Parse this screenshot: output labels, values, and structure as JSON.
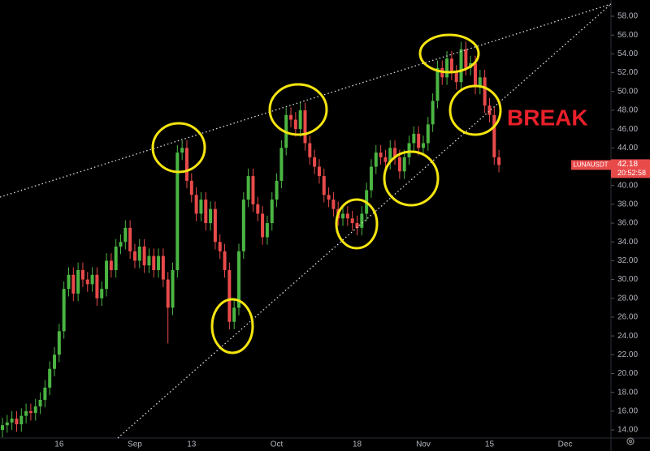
{
  "chart_data": {
    "type": "candlestick",
    "symbol": "LUNAUSDT",
    "countdown": "20:52:58",
    "annotation": "BREAK",
    "up_color": "#4bb543",
    "down_color": "#e84a4a",
    "ylim": [
      13.14,
      59.73
    ],
    "yticks": [
      {
        "value": 14,
        "label": "14.00"
      },
      {
        "value": 16,
        "label": "16.00"
      },
      {
        "value": 18,
        "label": "18.00"
      },
      {
        "value": 20,
        "label": "20.00"
      },
      {
        "value": 22,
        "label": "22.00"
      },
      {
        "value": 24,
        "label": "24.00"
      },
      {
        "value": 26,
        "label": "26.00"
      },
      {
        "value": 28,
        "label": "28.00"
      },
      {
        "value": 30,
        "label": "30.00"
      },
      {
        "value": 32,
        "label": "32.00"
      },
      {
        "value": 34,
        "label": "34.00"
      },
      {
        "value": 36,
        "label": "36.00"
      },
      {
        "value": 38,
        "label": "38.00"
      },
      {
        "value": 40,
        "label": "40.00"
      },
      {
        "value": 42,
        "label": "42.00"
      },
      {
        "value": 44,
        "label": "44.00"
      },
      {
        "value": 46,
        "label": "46.00"
      },
      {
        "value": 48,
        "label": "48.00"
      },
      {
        "value": 50,
        "label": "50.00"
      },
      {
        "value": 52,
        "label": "52.00"
      },
      {
        "value": 54,
        "label": "54.00"
      },
      {
        "value": 56,
        "label": "56.00"
      },
      {
        "value": 58,
        "label": "58.00"
      }
    ],
    "grid": false,
    "categories": [
      null,
      null,
      null,
      null,
      null,
      null,
      null,
      null,
      null,
      null,
      null,
      null,
      "16",
      null,
      null,
      null,
      null,
      null,
      null,
      null,
      null,
      null,
      null,
      null,
      null,
      null,
      null,
      null,
      "Sep",
      null,
      null,
      null,
      null,
      null,
      null,
      null,
      null,
      null,
      null,
      null,
      "13",
      null,
      null,
      null,
      null,
      null,
      null,
      null,
      null,
      null,
      null,
      null,
      null,
      null,
      null,
      null,
      null,
      null,
      "Oct",
      null,
      null,
      null,
      null,
      null,
      null,
      null,
      null,
      null,
      null,
      null,
      null,
      null,
      null,
      null,
      null,
      "18",
      null,
      null,
      null,
      null,
      null,
      null,
      null,
      null,
      null,
      null,
      null,
      null,
      null,
      "Nov",
      null,
      null,
      null,
      null,
      null,
      null,
      null,
      null,
      null,
      null,
      null,
      null,
      null,
      "15",
      null,
      null,
      null,
      null,
      null,
      null,
      null,
      null,
      null,
      null,
      null,
      null,
      null,
      null,
      null,
      "Dec",
      null,
      null,
      null,
      null,
      null,
      null,
      null,
      null
    ],
    "open": [
      14,
      14.5,
      14.8,
      15.2,
      14.6,
      15.5,
      16,
      15.8,
      16.5,
      17.2,
      18.5,
      20.5,
      22,
      24.5,
      29,
      30.5,
      28.5,
      31,
      30,
      29.5,
      30.5,
      28,
      29,
      32,
      31,
      33.5,
      34,
      35.5,
      33,
      32,
      33.5,
      31.5,
      32.5,
      31,
      32.5,
      30,
      27,
      31,
      43.5,
      44,
      40.5,
      39,
      37,
      38.5,
      36,
      37.5,
      34,
      33,
      31,
      25.5,
      27,
      33,
      38.5,
      41,
      38,
      37,
      34.5,
      36,
      38.5,
      40.5,
      44,
      47.5,
      47,
      46,
      48,
      44.5,
      43,
      42,
      41,
      39,
      38.5,
      37.5,
      36.5,
      37,
      36.5,
      36,
      35.5,
      37,
      39.5,
      42,
      43.5,
      43,
      42.5,
      44,
      43,
      41.5,
      43,
      44.5,
      45.5,
      44,
      44.5,
      46.5,
      49,
      52.5,
      51.5,
      53.5,
      52,
      51,
      54.5,
      52.5,
      53,
      50.5,
      51.5,
      48.5,
      47.5,
      43,
      null,
      null,
      null,
      null,
      null,
      null,
      null,
      null,
      null,
      null,
      null,
      null,
      null,
      null,
      null,
      null,
      null,
      null,
      null,
      null,
      null,
      null
    ],
    "high": [
      15.3,
      15.6,
      16,
      16,
      16.3,
      16.8,
      16.8,
      17.3,
      18,
      19.3,
      21.3,
      22.8,
      25.3,
      29.8,
      31.3,
      31.3,
      31.8,
      31.8,
      30.8,
      31.3,
      31.3,
      29.8,
      32.8,
      32.8,
      34.3,
      34.8,
      36.3,
      36.3,
      33.8,
      34.3,
      34.3,
      33.3,
      33.3,
      33.3,
      33.3,
      30.8,
      31.8,
      44.3,
      44.8,
      44.8,
      41.3,
      39.8,
      39.3,
      39.3,
      38.3,
      38.3,
      34.8,
      33.8,
      31.8,
      27.8,
      33.8,
      39.3,
      41.8,
      41.8,
      38.8,
      37.8,
      36.8,
      39.3,
      41.3,
      44.8,
      48.3,
      48.3,
      47.8,
      48.8,
      48.8,
      45.3,
      43.8,
      42.8,
      41.8,
      39.8,
      39.3,
      38.3,
      37.8,
      37.8,
      37.3,
      36.8,
      37.8,
      40.3,
      42.8,
      44.3,
      44.3,
      43.8,
      44.8,
      44.8,
      43.8,
      43.8,
      45.3,
      46.3,
      46.3,
      45.3,
      47.3,
      49.8,
      53.3,
      53.3,
      54.3,
      54.3,
      52.8,
      55.3,
      55.3,
      53.8,
      53.8,
      52.3,
      52.3,
      49.3,
      48.3,
      43.8,
      null,
      null,
      null,
      null,
      null,
      null,
      null,
      null,
      null,
      null,
      null,
      null,
      null,
      null,
      null,
      null,
      null,
      null,
      null,
      null,
      null,
      null
    ],
    "low": [
      13.2,
      13.7,
      14,
      13.8,
      13.8,
      14.7,
      15,
      15,
      15.7,
      16.4,
      17.7,
      19.7,
      21.2,
      23.7,
      28.2,
      27.7,
      27.7,
      29.2,
      28.7,
      28.7,
      27.2,
      27.2,
      28.2,
      30.2,
      30.2,
      32.7,
      33.2,
      32.2,
      31.2,
      31.2,
      30.7,
      30.7,
      30.2,
      30.2,
      29.2,
      23.2,
      26.2,
      30.2,
      42.7,
      39.7,
      38.2,
      36.2,
      36.2,
      35.2,
      35.2,
      33.2,
      32.2,
      30.2,
      24.7,
      24.7,
      26.2,
      32.2,
      37.7,
      37.2,
      36.2,
      33.7,
      33.7,
      35.2,
      37.7,
      39.7,
      43.2,
      46.2,
      45.2,
      45.2,
      43.7,
      42.2,
      41.2,
      40.2,
      38.2,
      37.7,
      36.7,
      35.7,
      35.7,
      35.7,
      35.2,
      34.7,
      34.7,
      36.2,
      38.7,
      41.2,
      42.2,
      41.7,
      41.7,
      42.2,
      40.7,
      40.7,
      42.2,
      43.7,
      43.2,
      43.2,
      43.7,
      45.7,
      48.2,
      50.7,
      50.7,
      51.2,
      50.2,
      50.2,
      51.7,
      51.7,
      49.7,
      49.7,
      47.7,
      46.7,
      42.2,
      41.4,
      null,
      null,
      null,
      null,
      null,
      null,
      null,
      null,
      null,
      null,
      null,
      null,
      null,
      null,
      null,
      null,
      null,
      null,
      null,
      null,
      null,
      null
    ],
    "close": [
      14.5,
      14.8,
      15.2,
      14.6,
      15.5,
      16,
      15.8,
      16.5,
      17.2,
      18.5,
      20.5,
      22,
      24.5,
      29,
      30.5,
      28.5,
      31,
      30,
      29.5,
      30.5,
      28,
      29,
      32,
      31,
      33.5,
      34,
      35.5,
      33,
      32,
      33.5,
      31.5,
      32.5,
      31,
      32.5,
      30,
      27,
      31,
      43.5,
      44,
      40.5,
      39,
      37,
      38.5,
      36,
      37.5,
      34,
      33,
      31,
      25.5,
      27,
      33,
      38.5,
      41,
      38,
      37,
      34.5,
      36,
      38.5,
      40.5,
      44,
      47.5,
      47,
      46,
      48,
      44.5,
      43,
      42,
      41,
      39,
      38.5,
      37.5,
      36.5,
      37,
      36.5,
      36,
      35.5,
      37,
      39.5,
      42,
      43.5,
      43,
      42.5,
      44,
      43,
      41.5,
      43,
      44.5,
      45.5,
      44,
      44.5,
      46.5,
      49,
      52.5,
      51.5,
      53.5,
      52,
      51,
      54.5,
      52.5,
      53,
      50.5,
      51.5,
      48.5,
      47.5,
      43,
      42.18,
      null,
      null,
      null,
      null,
      null,
      null,
      null,
      null,
      null,
      null,
      null,
      null,
      null,
      null,
      null,
      null,
      null,
      null,
      null,
      null,
      null,
      null
    ]
  }
}
